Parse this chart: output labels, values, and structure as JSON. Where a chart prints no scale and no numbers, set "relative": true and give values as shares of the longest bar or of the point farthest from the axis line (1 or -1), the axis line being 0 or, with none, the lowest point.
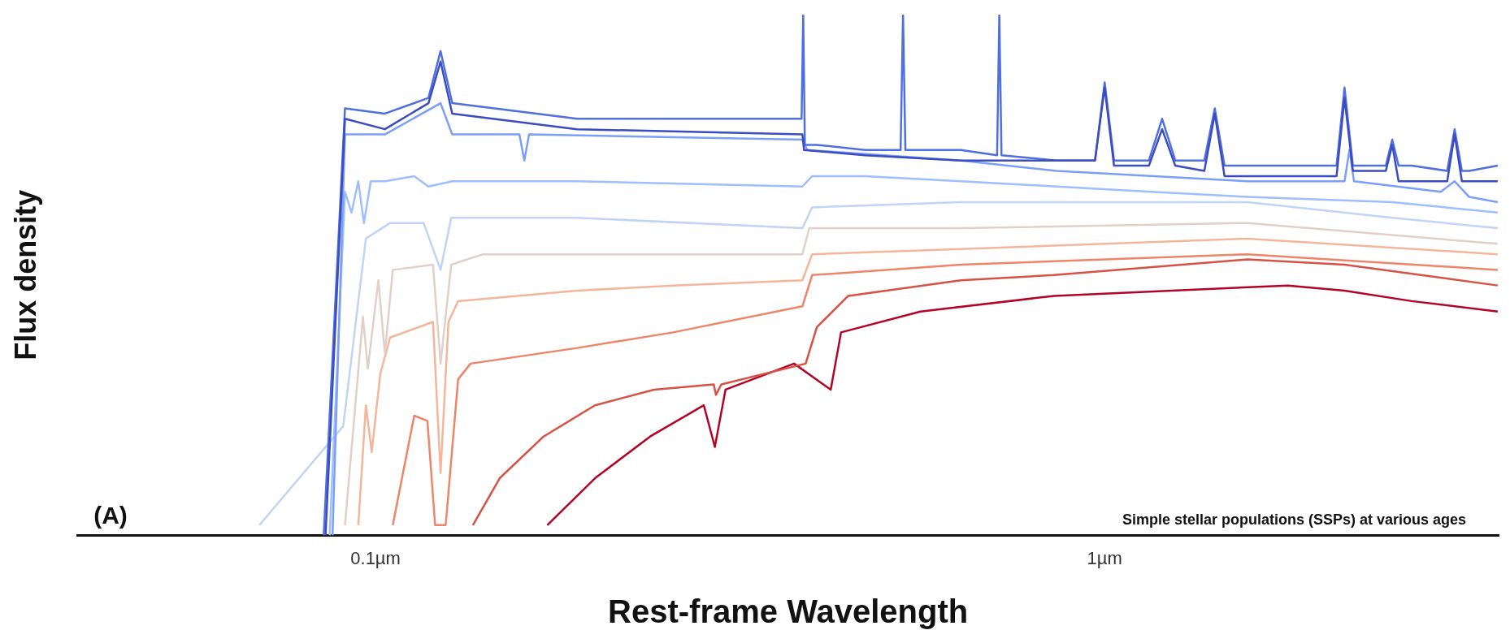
{
  "chart_data": {
    "type": "line",
    "relative": true,
    "xlabel": "Rest-frame Wavelength",
    "ylabel": "Flux density",
    "log": "x",
    "grid": false,
    "legend": false,
    "marker": "none",
    "line_style": "solid",
    "xlim": [
      0.039,
      3.47
    ],
    "xticks": [
      {
        "value": 0.1,
        "label": "0.1µm"
      },
      {
        "value": 1,
        "label": "1µm"
      }
    ],
    "annotations": [
      "(A)",
      "Simple stellar populations (SSPs) at various ages"
    ],
    "series": [
      {
        "color": "#3b4cc0",
        "x": [
          0.0854,
          0.0908,
          0.103,
          0.1182,
          0.1228,
          0.1274,
          0.189,
          0.385,
          0.387,
          0.469,
          0.635,
          0.847,
          0.97,
          1.0,
          1.03,
          1.15,
          1.199,
          1.25,
          1.37,
          1.416,
          1.46,
          1.57,
          2.007,
          2.08,
          2.133,
          2.19,
          2.266,
          2.43,
          2.48,
          2.53,
          2.637,
          2.95,
          3.02,
          3.09,
          3.162,
          3.46
        ],
        "values": [
          0,
          0.8,
          0.78,
          0.83,
          0.91,
          0.81,
          0.78,
          0.77,
          0.74,
          0.73,
          0.72,
          0.72,
          0.72,
          0.86,
          0.71,
          0.71,
          0.78,
          0.71,
          0.7,
          0.81,
          0.69,
          0.69,
          0.69,
          0.69,
          0.84,
          0.7,
          0.7,
          0.7,
          0.75,
          0.68,
          0.68,
          0.68,
          0.77,
          0.68,
          0.68,
          0.68
        ]
      },
      {
        "color": "#4f6fe0",
        "x": [
          0.0849,
          0.0908,
          0.103,
          0.1182,
          0.1228,
          0.1274,
          0.189,
          0.384,
          0.386,
          0.388,
          0.403,
          0.469,
          0.525,
          0.529,
          0.533,
          0.635,
          0.712,
          0.717,
          0.722,
          0.859,
          0.97,
          1.0,
          1.03,
          1.15,
          1.199,
          1.25,
          1.37,
          1.416,
          1.46,
          1.57,
          2.08,
          2.133,
          2.19,
          2.266,
          2.43,
          2.48,
          2.53,
          2.637,
          2.95,
          3.02,
          3.09,
          3.162,
          3.46
        ],
        "values": [
          0,
          0.82,
          0.81,
          0.84,
          0.93,
          0.83,
          0.8,
          0.8,
          1.0,
          0.75,
          0.75,
          0.74,
          0.74,
          1.0,
          0.74,
          0.74,
          0.73,
          1.0,
          0.73,
          0.72,
          0.72,
          0.87,
          0.72,
          0.72,
          0.8,
          0.72,
          0.72,
          0.82,
          0.71,
          0.71,
          0.71,
          0.86,
          0.71,
          0.71,
          0.71,
          0.76,
          0.71,
          0.71,
          0.7,
          0.78,
          0.7,
          0.7,
          0.71
        ]
      },
      {
        "color": "#7b9ff9",
        "x": [
          0.0873,
          0.0908,
          0.103,
          0.1228,
          0.1274,
          0.1575,
          0.16,
          0.1624,
          0.385,
          0.391,
          0.635,
          0.859,
          1.57,
          2.133,
          2.166,
          2.198,
          2.89,
          3.02,
          3.162,
          3.46
        ],
        "values": [
          0,
          0.77,
          0.77,
          0.83,
          0.77,
          0.77,
          0.72,
          0.77,
          0.76,
          0.74,
          0.72,
          0.7,
          0.68,
          0.68,
          0.74,
          0.68,
          0.66,
          0.68,
          0.65,
          0.64
        ]
      },
      {
        "color": "#9ebeff",
        "x": [
          0.0865,
          0.0908,
          0.0927,
          0.0947,
          0.0964,
          0.0985,
          0.103,
          0.113,
          0.1182,
          0.1274,
          0.189,
          0.385,
          0.397,
          0.469,
          0.635,
          0.859,
          1.16,
          1.57,
          2.48,
          3.46
        ],
        "values": [
          0,
          0.66,
          0.62,
          0.68,
          0.6,
          0.68,
          0.68,
          0.69,
          0.67,
          0.68,
          0.68,
          0.67,
          0.69,
          0.69,
          0.68,
          0.67,
          0.66,
          0.65,
          0.64,
          0.62
        ]
      },
      {
        "color": "#c0d4f5",
        "x": [
          0.0693,
          0.0903,
          0.097,
          0.1047,
          0.1164,
          0.1228,
          0.127,
          0.189,
          0.385,
          0.397,
          0.635,
          1.57,
          2.48,
          3.46
        ],
        "values": [
          0.02,
          0.21,
          0.57,
          0.6,
          0.6,
          0.51,
          0.61,
          0.61,
          0.59,
          0.63,
          0.64,
          0.64,
          0.61,
          0.59
        ]
      },
      {
        "color": "#e2d0c8",
        "x": [
          0.0908,
          0.0961,
          0.0976,
          0.1009,
          0.103,
          0.1056,
          0.1199,
          0.1228,
          0.127,
          0.1404,
          0.385,
          0.3934,
          0.635,
          1.57,
          3.46
        ],
        "values": [
          0.02,
          0.42,
          0.32,
          0.49,
          0.35,
          0.51,
          0.52,
          0.33,
          0.52,
          0.54,
          0.54,
          0.59,
          0.59,
          0.6,
          0.56
        ]
      },
      {
        "color": "#f4b69b",
        "x": [
          0.0947,
          0.097,
          0.0988,
          0.1015,
          0.1047,
          0.1199,
          0.1228,
          0.1259,
          0.1298,
          0.189,
          0.256,
          0.385,
          0.397,
          0.635,
          1.57,
          3.46
        ],
        "values": [
          0.02,
          0.25,
          0.16,
          0.31,
          0.38,
          0.41,
          0.12,
          0.41,
          0.45,
          0.47,
          0.48,
          0.49,
          0.54,
          0.55,
          0.57,
          0.54
        ]
      },
      {
        "color": "#ee8468",
        "x": [
          0.1056,
          0.113,
          0.1178,
          0.1207,
          0.1248,
          0.1298,
          0.135,
          0.189,
          0.256,
          0.385,
          0.397,
          0.635,
          1.57,
          3.46
        ],
        "values": [
          0.02,
          0.23,
          0.22,
          0.02,
          0.02,
          0.3,
          0.33,
          0.36,
          0.39,
          0.44,
          0.5,
          0.52,
          0.54,
          0.51
        ]
      },
      {
        "color": "#d65244",
        "x": [
          0.136,
          0.148,
          0.17,
          0.2,
          0.241,
          0.291,
          0.293,
          0.298,
          0.389,
          0.403,
          0.445,
          0.635,
          0.852,
          1.57,
          2.133,
          3.46
        ],
        "values": [
          0.02,
          0.11,
          0.19,
          0.25,
          0.28,
          0.29,
          0.27,
          0.29,
          0.33,
          0.4,
          0.46,
          0.49,
          0.5,
          0.53,
          0.52,
          0.48
        ]
      },
      {
        "color": "#b40426",
        "x": [
          0.172,
          0.2,
          0.238,
          0.282,
          0.292,
          0.302,
          0.375,
          0.421,
          0.435,
          0.559,
          0.852,
          1.784,
          2.133,
          2.637,
          3.46
        ],
        "values": [
          0.02,
          0.11,
          0.19,
          0.25,
          0.17,
          0.28,
          0.33,
          0.28,
          0.39,
          0.43,
          0.46,
          0.48,
          0.47,
          0.45,
          0.43
        ]
      }
    ]
  }
}
